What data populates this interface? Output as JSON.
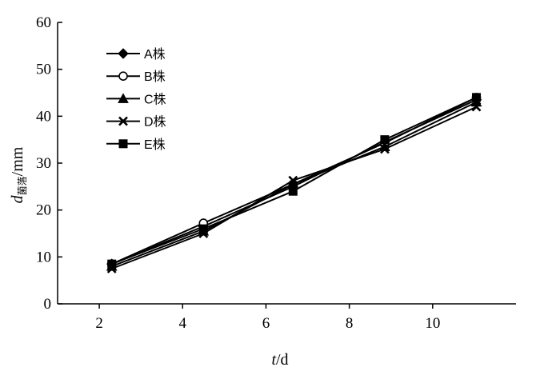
{
  "chart_data": {
    "type": "line",
    "xlabel": {
      "main": "t",
      "unit": "/d"
    },
    "ylabel": {
      "main": "d",
      "sub": "菌落",
      "unit": "/mm"
    },
    "xlim": [
      1,
      12
    ],
    "ylim": [
      0,
      60
    ],
    "x_ticks": [
      2,
      4,
      6,
      8,
      10
    ],
    "y_ticks": [
      0,
      10,
      20,
      30,
      40,
      50,
      60
    ],
    "x": [
      2.3,
      4.5,
      6.65,
      8.85,
      11.05
    ],
    "legend_position": "top-left",
    "grid": false,
    "series": [
      {
        "name": "A株",
        "marker": "diamond",
        "values": [
          8.5,
          16.5,
          25.0,
          34.5,
          43.5
        ]
      },
      {
        "name": "B株",
        "marker": "circle-open",
        "values": [
          8.5,
          17.2,
          25.5,
          34.3,
          44.0
        ]
      },
      {
        "name": "C株",
        "marker": "triangle",
        "values": [
          8.0,
          15.5,
          25.5,
          33.5,
          43.0
        ]
      },
      {
        "name": "D株",
        "marker": "x",
        "values": [
          7.5,
          15.0,
          26.3,
          33.0,
          42.0
        ]
      },
      {
        "name": "E株",
        "marker": "square",
        "values": [
          8.5,
          16.0,
          24.0,
          35.0,
          44.0
        ]
      }
    ]
  }
}
